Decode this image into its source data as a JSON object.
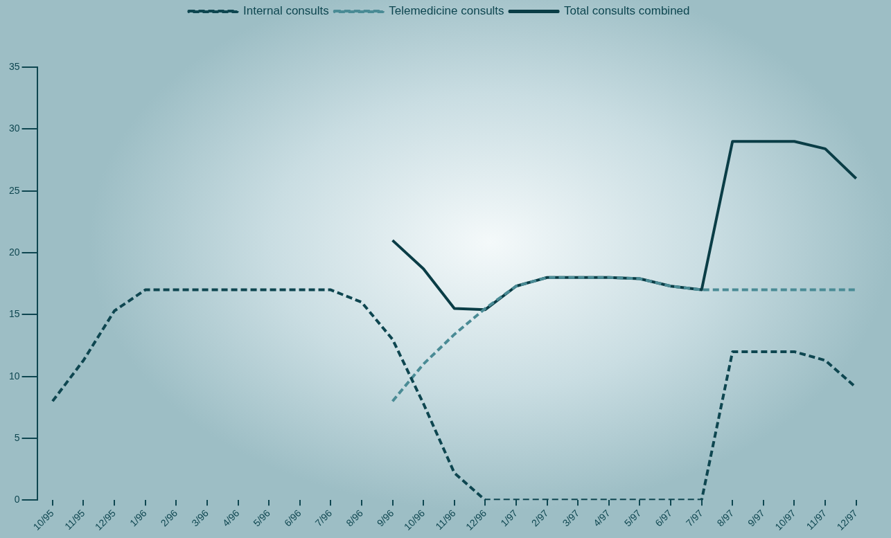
{
  "chart_data": {
    "type": "line",
    "categories": [
      "10/95",
      "11/95",
      "12/95",
      "1/96",
      "2/96",
      "3/96",
      "4/96",
      "5/96",
      "6/96",
      "7/96",
      "8/96",
      "9/96",
      "10/96",
      "11/96",
      "12/96",
      "1/97",
      "2/97",
      "3/97",
      "4/97",
      "5/97",
      "6/97",
      "7/97",
      "8/97",
      "9/97",
      "10/97",
      "11/97",
      "12/97"
    ],
    "series": [
      {
        "name": "Internal consults",
        "color": "#0e4650",
        "line_style": "dashed",
        "values": [
          8,
          11.3,
          15.3,
          17,
          17,
          17,
          17,
          17,
          17,
          17,
          16,
          13,
          7.8,
          2.2,
          0,
          0,
          0,
          0,
          0,
          0,
          0,
          0,
          12,
          12,
          12,
          11.3,
          9.1
        ]
      },
      {
        "name": "Telemedicine consults",
        "color": "#4a8b95",
        "line_style": "dashed",
        "values": [
          null,
          null,
          null,
          null,
          null,
          null,
          null,
          null,
          null,
          null,
          null,
          8,
          11,
          13.4,
          15.5,
          17.3,
          18,
          18,
          18,
          17.9,
          17.3,
          17,
          17,
          17,
          17,
          17,
          17
        ]
      },
      {
        "name": "Total consults combined",
        "color": "#0a3d46",
        "line_style": "solid",
        "values": [
          null,
          null,
          null,
          null,
          null,
          null,
          null,
          null,
          null,
          null,
          null,
          21,
          18.7,
          15.5,
          15.4,
          17.3,
          18,
          18,
          18,
          17.9,
          17.3,
          17,
          29,
          29,
          29,
          28.4,
          26
        ]
      }
    ],
    "ylim": [
      0,
      35
    ],
    "yticks": [
      0,
      5,
      10,
      15,
      20,
      25,
      30,
      35
    ],
    "grid": false,
    "legend": "top",
    "marker": "none"
  }
}
